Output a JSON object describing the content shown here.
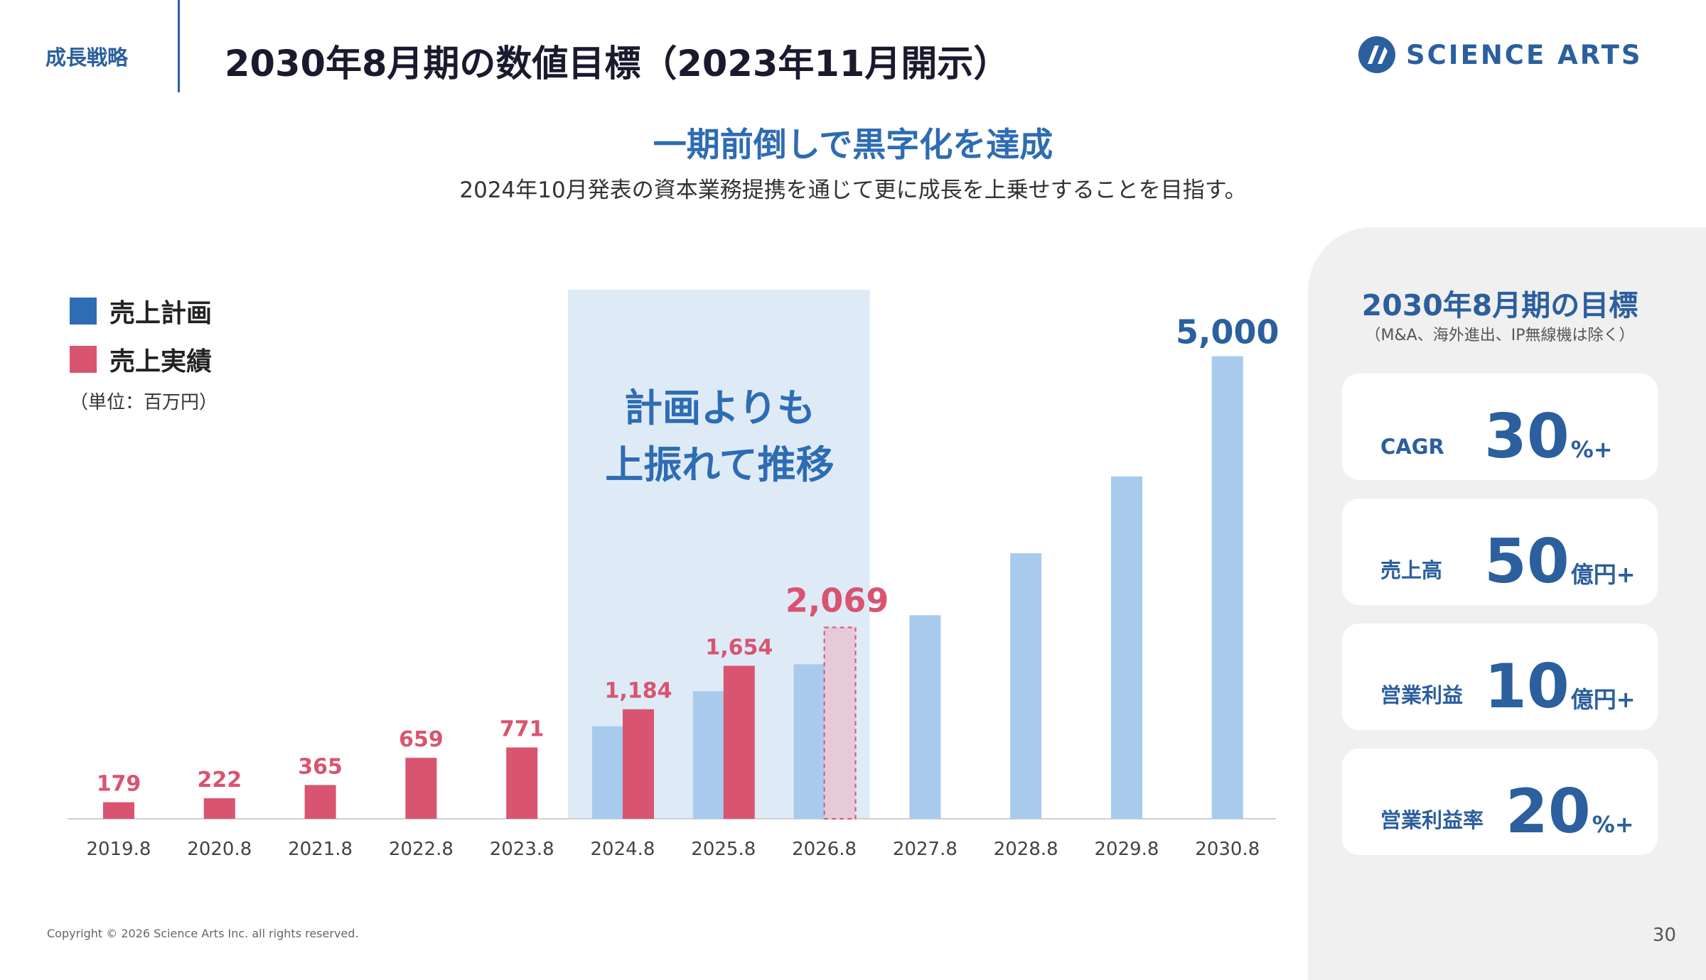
{
  "header": {
    "section": "成長戦略",
    "title": "2030年8月期の数値目標（2023年11月開示）",
    "logo_text": "SCIENCE ARTS"
  },
  "headline": "一期前倒しで黒字化を達成",
  "subline": "2024年10月発表の資本業務提携を通じて更に成長を上乗せすることを目指す。",
  "legend": {
    "plan": "売上計画",
    "actual": "売上実績",
    "unit": "（単位：百万円）"
  },
  "callout": {
    "line1": "計画よりも",
    "line2": "上振れて推移"
  },
  "colors": {
    "plan": "#a8cbed",
    "actual": "#d95470",
    "forecast_fill": "#e6cad8",
    "highlight": "#deebf7",
    "brand": "#2b5f9e"
  },
  "chart_data": {
    "type": "bar",
    "categories": [
      "2019.8",
      "2020.8",
      "2021.8",
      "2022.8",
      "2023.8",
      "2024.8",
      "2025.8",
      "2026.8",
      "2027.8",
      "2028.8",
      "2029.8",
      "2030.8"
    ],
    "series": [
      {
        "name": "売上計画",
        "values": [
          null,
          null,
          null,
          null,
          null,
          1000,
          1380,
          1670,
          2200,
          2870,
          3700,
          5000
        ]
      },
      {
        "name": "売上実績",
        "values": [
          179,
          222,
          365,
          659,
          771,
          1184,
          1654,
          2069,
          null,
          null,
          null,
          null
        ]
      }
    ],
    "data_labels": {
      "plan": [
        "",
        "",
        "",
        "",
        "",
        "",
        "",
        "",
        "",
        "",
        "",
        "5,000"
      ],
      "actual": [
        "179",
        "222",
        "365",
        "659",
        "771",
        "1,184",
        "1,654",
        "2,069",
        "",
        "",
        "",
        ""
      ]
    },
    "forecast_category": "2026.8",
    "highlight_range": [
      "2024.8",
      "2026.8"
    ],
    "ylim": [
      0,
      5500
    ],
    "grid": false
  },
  "panel": {
    "title": "2030年8月期の目標",
    "note": "（M&A、海外進出、IP無線機は除く）",
    "kpis": [
      {
        "label": "CAGR",
        "value": "30",
        "unit": "%+"
      },
      {
        "label": "売上高",
        "value": "50",
        "unit": "億円+"
      },
      {
        "label": "営業利益",
        "value": "10",
        "unit": "億円+"
      },
      {
        "label": "営業利益率",
        "value": "20",
        "unit": "%+"
      }
    ]
  },
  "footer": {
    "copyright": "Copyright © 2026 Science Arts Inc. all rights reserved.",
    "page": "30"
  }
}
